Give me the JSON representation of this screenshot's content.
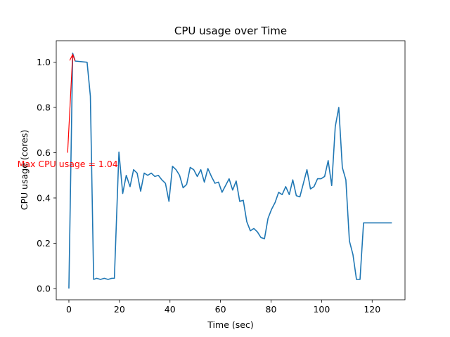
{
  "chart_data": {
    "type": "line",
    "title": "CPU usage over Time",
    "xlabel": "Time (sec)",
    "ylabel": "CPU usage (cores)",
    "xlim": [
      -5,
      133
    ],
    "ylim": [
      -0.05,
      1.095
    ],
    "xticks": [
      0,
      20,
      40,
      60,
      80,
      100,
      120
    ],
    "xtick_labels": [
      "0",
      "20",
      "40",
      "60",
      "80",
      "100",
      "120"
    ],
    "yticks": [
      0.0,
      0.2,
      0.4,
      0.6,
      0.8,
      1.0
    ],
    "ytick_labels": [
      "0.0",
      "0.2",
      "0.4",
      "0.6",
      "0.8",
      "1.0"
    ],
    "grid": false,
    "series": [
      {
        "color": "#1f77b4",
        "x": [
          0,
          1.5,
          2.5,
          7.2,
          8.5,
          9.8,
          11,
          12.5,
          14,
          15.5,
          17,
          18,
          19.8,
          21.3,
          22.7,
          24.2,
          25.6,
          27,
          28.4,
          29.8,
          31.2,
          32.6,
          34,
          35.4,
          36.8,
          38.2,
          39.6,
          41,
          42.4,
          43.8,
          45.2,
          46.6,
          48,
          49.4,
          50.8,
          52.2,
          53.6,
          55,
          56.4,
          57.8,
          59.2,
          60.6,
          62,
          63.4,
          64.8,
          66.2,
          67.6,
          69,
          70.4,
          71.8,
          73.2,
          74.6,
          76,
          77.4,
          78.8,
          80.2,
          81.6,
          83,
          84.4,
          85.8,
          87.2,
          88.6,
          90,
          91.4,
          92.8,
          94.2,
          95.6,
          97,
          98.4,
          99.8,
          101.2,
          102.6,
          104,
          105.4,
          106.8,
          108.2,
          109.6,
          111,
          112.4,
          113.8,
          115.2,
          116.6,
          118,
          119.4,
          120.8,
          122.2,
          123.6,
          125,
          126.4,
          127.8
        ],
        "y": [
          0.0,
          1.04,
          1.005,
          1.0,
          0.85,
          0.04,
          0.045,
          0.04,
          0.045,
          0.04,
          0.045,
          0.045,
          0.603,
          0.42,
          0.5,
          0.45,
          0.525,
          0.51,
          0.43,
          0.51,
          0.5,
          0.51,
          0.495,
          0.5,
          0.48,
          0.465,
          0.385,
          0.54,
          0.525,
          0.5,
          0.445,
          0.46,
          0.535,
          0.525,
          0.495,
          0.525,
          0.47,
          0.53,
          0.495,
          0.465,
          0.47,
          0.425,
          0.455,
          0.485,
          0.435,
          0.475,
          0.385,
          0.39,
          0.295,
          0.255,
          0.265,
          0.25,
          0.225,
          0.22,
          0.31,
          0.35,
          0.38,
          0.425,
          0.415,
          0.45,
          0.415,
          0.48,
          0.41,
          0.405,
          0.465,
          0.525,
          0.44,
          0.45,
          0.485,
          0.485,
          0.495,
          0.565,
          0.455,
          0.715,
          0.8,
          0.535,
          0.48,
          0.21,
          0.15,
          0.04,
          0.04,
          0.29,
          0.29,
          0.29,
          0.29,
          0.29,
          0.29,
          0.29,
          0.29,
          0.29
        ]
      }
    ],
    "annotations": [
      {
        "text": "Max CPU usage = 1.04",
        "text_x": -0.5,
        "text_y": 0.55,
        "arrow_from": [
          -0.5,
          0.6
        ],
        "arrow_to": [
          1.5,
          1.04
        ],
        "color": "#ff0000"
      }
    ]
  }
}
